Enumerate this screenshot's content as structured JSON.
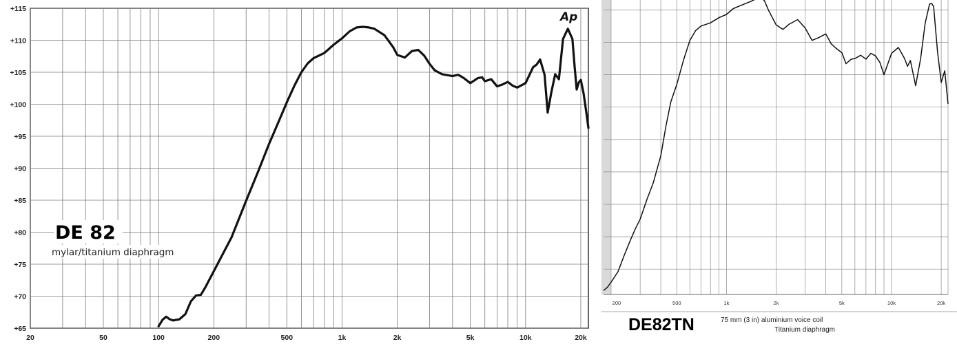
{
  "chart_data": [
    {
      "type": "line",
      "title": "DE 82",
      "subtitle": "mylar/titanium diaphragm",
      "logo_text": "Ap",
      "x_scale": "log",
      "xlim": [
        20,
        22000
      ],
      "ylim": [
        65,
        115
      ],
      "grid": true,
      "x_ticks": [
        20,
        50,
        100,
        200,
        500,
        1000,
        2000,
        5000,
        10000,
        20000
      ],
      "x_tick_labels": [
        "20",
        "50",
        "100",
        "200",
        "500",
        "1k",
        "2k",
        "5k",
        "10k",
        "20k"
      ],
      "y_ticks": [
        65,
        70,
        75,
        80,
        85,
        90,
        95,
        100,
        105,
        110,
        115
      ],
      "y_tick_labels": [
        "+65",
        "+70",
        "+75",
        "+80",
        "+85",
        "+90",
        "+95",
        "+100",
        "+105",
        "+110",
        "+115"
      ],
      "series": [
        {
          "x": [
            100,
            105,
            110,
            115,
            120,
            130,
            140,
            150,
            160,
            170,
            180,
            200,
            250,
            300,
            350,
            400,
            450,
            500,
            550,
            600,
            650,
            700,
            800,
            900,
            1000,
            1100,
            1200,
            1300,
            1400,
            1500,
            1700,
            1900,
            2000,
            2200,
            2400,
            2600,
            2800,
            3000,
            3200,
            3500,
            4000,
            4300,
            4600,
            5000,
            5500,
            5800,
            6000,
            6500,
            7000,
            7500,
            8000,
            8500,
            9000,
            10000,
            11000,
            11500,
            12000,
            12700,
            13200,
            13800,
            14500,
            15200,
            16000,
            17000,
            18000,
            18500,
            19000,
            19500,
            20000,
            20700,
            21500,
            22000
          ],
          "y": [
            65.3,
            66.3,
            66.8,
            66.4,
            66.2,
            66.4,
            67.2,
            69.2,
            70.1,
            70.2,
            71.4,
            73.9,
            79.2,
            84.9,
            89.6,
            93.8,
            97.2,
            100.3,
            102.9,
            105.0,
            106.4,
            107.2,
            108.0,
            109.3,
            110.3,
            111.4,
            112.0,
            112.1,
            112.0,
            111.8,
            110.8,
            108.9,
            107.7,
            107.3,
            108.3,
            108.5,
            107.6,
            106.3,
            105.3,
            104.7,
            104.4,
            104.6,
            104.1,
            103.3,
            104.1,
            104.2,
            103.6,
            103.9,
            102.8,
            103.1,
            103.5,
            102.9,
            102.6,
            103.3,
            105.8,
            106.2,
            107.0,
            104.6,
            98.7,
            101.8,
            104.7,
            103.9,
            110.2,
            111.8,
            110.2,
            105.9,
            102.3,
            103.4,
            103.8,
            101.7,
            98.5,
            96.3
          ]
        }
      ]
    },
    {
      "type": "line",
      "title": "DE82TN",
      "subtitle_line1": "75 mm (3 in) aluminium voice coil",
      "subtitle_line2": "Titanium diaphragm",
      "x_scale": "log",
      "xlim": [
        180,
        22000
      ],
      "ylim": [
        65,
        115
      ],
      "grid": true,
      "x_ticks": [
        200,
        500,
        1000,
        2000,
        5000,
        10000,
        20000
      ],
      "x_tick_labels": [
        "200",
        "500",
        "1k",
        "2k",
        "5k",
        "10k",
        "20k"
      ],
      "series": [
        {
          "x": [
            180,
            190,
            200,
            220,
            240,
            260,
            280,
            300,
            330,
            360,
            400,
            430,
            460,
            500,
            550,
            600,
            650,
            700,
            800,
            900,
            1000,
            1100,
            1200,
            1400,
            1600,
            1700,
            1800,
            2000,
            2200,
            2400,
            2700,
            3000,
            3300,
            3600,
            4000,
            4300,
            4600,
            5000,
            5300,
            5700,
            6000,
            6500,
            7000,
            7500,
            8000,
            8500,
            9000,
            10000,
            11000,
            12000,
            12500,
            13000,
            14000,
            15000,
            16000,
            17000,
            17500,
            18000,
            19000,
            20000,
            21000,
            22000
          ],
          "y": [
            66.7,
            67.2,
            68.0,
            69.6,
            72.1,
            74.3,
            76.2,
            77.7,
            80.8,
            83.3,
            87.5,
            92.1,
            95.8,
            98.5,
            102.3,
            105.3,
            106.8,
            107.5,
            108.0,
            108.8,
            109.3,
            110.2,
            110.6,
            111.3,
            112.0,
            111.4,
            109.9,
            107.7,
            107.0,
            107.8,
            108.5,
            107.2,
            105.3,
            105.7,
            106.3,
            104.8,
            104.1,
            103.4,
            101.7,
            102.4,
            102.5,
            103.0,
            102.4,
            103.3,
            102.9,
            101.9,
            100.0,
            103.3,
            104.2,
            102.5,
            101.3,
            102.2,
            98.3,
            102.5,
            108.0,
            110.9,
            111.0,
            110.5,
            103.6,
            98.8,
            100.6,
            95.5
          ]
        }
      ]
    }
  ]
}
